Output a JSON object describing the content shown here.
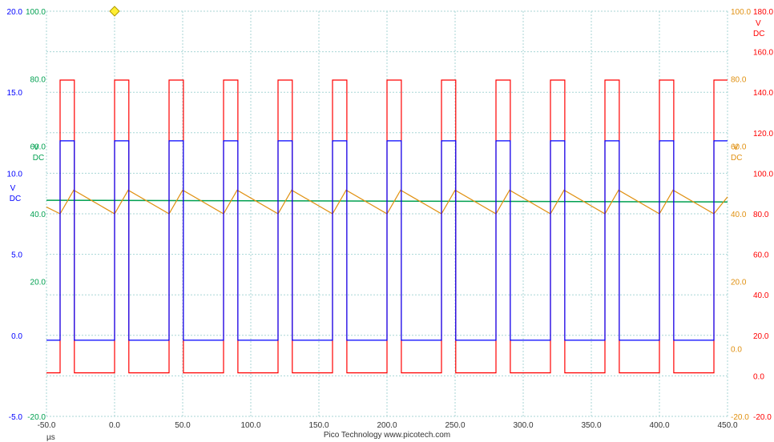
{
  "footer": {
    "brand": "Pico Technology   www.picotech.com"
  },
  "chart_data": {
    "type": "line",
    "title": "",
    "x_unit_label": "µs",
    "xlim": [
      -50,
      450
    ],
    "x_ticks": [
      "-50.0",
      "0.0",
      "50.0",
      "100.0",
      "150.0",
      "200.0",
      "250.0",
      "300.0",
      "350.0",
      "400.0",
      "450.0"
    ],
    "grid": true,
    "axes": {
      "left_blue": {
        "unit": [
          "V",
          "DC"
        ],
        "color": "#0000ff",
        "ylim": [
          -5,
          20
        ],
        "ticks": [
          "-5.0",
          "0.0",
          "5.0",
          "10.0",
          "15.0",
          "20.0"
        ]
      },
      "left_green": {
        "unit": [
          "V",
          "DC"
        ],
        "color": "#00a050",
        "ylim": [
          -20,
          100
        ],
        "ticks": [
          "-20.0",
          "20.0",
          "40.0",
          "60.0",
          "80.0",
          "100.0"
        ]
      },
      "right_red": {
        "unit": [
          "V",
          "DC"
        ],
        "color": "#ff0000",
        "ylim": [
          -20,
          180
        ],
        "ticks": [
          "-20.0",
          "0.0",
          "20.0",
          "40.0",
          "60.0",
          "80.0",
          "100.0",
          "120.0",
          "140.0",
          "160.0",
          "180.0"
        ]
      },
      "right_orange": {
        "unit": [
          "V",
          "DC"
        ],
        "color": "#e09010",
        "ylim": [
          -20,
          100
        ],
        "ticks": [
          "-20.0",
          "0.0",
          "20.0",
          "40.0",
          "60.0",
          "80.0",
          "100.0"
        ]
      }
    },
    "trigger_marker": {
      "x": 0,
      "y_blue": 20
    },
    "series": [
      {
        "name": "",
        "color": "#ff0000",
        "axis": "right_red",
        "shape": "square",
        "period_us": 40,
        "rise_times_us": [
          -40,
          0,
          40,
          80,
          120,
          160,
          200,
          240,
          280,
          320,
          360,
          400,
          440
        ],
        "pulse_width_us": 10.5,
        "high": 146,
        "low": 1.5
      },
      {
        "name": "",
        "color": "#0000ff",
        "axis": "left_blue",
        "shape": "square",
        "period_us": 40,
        "rise_times_us": [
          -40,
          0,
          40,
          80,
          120,
          160,
          200,
          240,
          280,
          320,
          360,
          400,
          440
        ],
        "pulse_width_us": 10.5,
        "high": 12,
        "low": -0.3
      },
      {
        "name": "",
        "color": "#00a050",
        "axis": "left_green",
        "shape": "flat",
        "points": [
          [
            -50,
            44
          ],
          [
            450,
            43.5
          ]
        ]
      },
      {
        "name": "",
        "color": "#e09010",
        "axis": "right_orange",
        "shape": "sawtooth",
        "period_us": 40,
        "peak_times_us": [
          -30,
          10,
          50,
          90,
          130,
          170,
          210,
          250,
          290,
          330,
          370,
          410
        ],
        "trough_times_us": [
          -40,
          0,
          40,
          80,
          120,
          160,
          200,
          240,
          280,
          320,
          360,
          400,
          440
        ],
        "peak": 47,
        "trough": 40
      }
    ]
  }
}
